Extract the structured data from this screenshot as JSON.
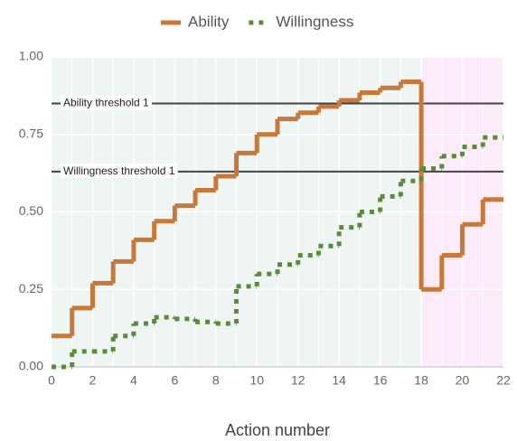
{
  "chart_data": {
    "type": "step",
    "x_label": "Action number",
    "x": [
      0,
      1,
      2,
      3,
      4,
      5,
      6,
      7,
      8,
      9,
      10,
      11,
      12,
      13,
      14,
      15,
      16,
      17,
      18,
      19,
      20,
      21
    ],
    "series": [
      {
        "name": "Ability",
        "color": "#c8793a",
        "style": "solid",
        "values": [
          0.1,
          0.19,
          0.27,
          0.34,
          0.41,
          0.47,
          0.52,
          0.57,
          0.615,
          0.69,
          0.75,
          0.8,
          0.82,
          0.84,
          0.86,
          0.885,
          0.9,
          0.92,
          0.25,
          0.36,
          0.46,
          0.54
        ]
      },
      {
        "name": "Willingness",
        "color": "#5a8a3c",
        "style": "dotted",
        "values": [
          0.0,
          0.05,
          0.05,
          0.1,
          0.14,
          0.16,
          0.155,
          0.145,
          0.14,
          0.26,
          0.3,
          0.33,
          0.36,
          0.39,
          0.45,
          0.5,
          0.55,
          0.6,
          0.64,
          0.68,
          0.71,
          0.74
        ]
      }
    ],
    "thresholds": [
      {
        "label": "Ability threshold 1",
        "value": 0.85
      },
      {
        "label": "Willingness threshold 1",
        "value": 0.63
      }
    ],
    "regions": [
      {
        "from": 0,
        "to": 18,
        "color": "#eef5f3"
      },
      {
        "from": 18,
        "to": 22,
        "color": "#fcebf9"
      }
    ],
    "xlim": [
      0,
      22
    ],
    "xticks": [
      0,
      2,
      4,
      6,
      8,
      10,
      12,
      14,
      16,
      18,
      20,
      22
    ],
    "ylim": [
      0,
      1
    ],
    "yticks": [
      {
        "value": 0,
        "label": "0.00"
      },
      {
        "value": 0.25,
        "label": "0.25"
      },
      {
        "value": 0.5,
        "label": "0.50"
      },
      {
        "value": 0.75,
        "label": "0.75"
      },
      {
        "value": 1,
        "label": "1.00"
      }
    ],
    "grid": true,
    "legend": "top"
  }
}
